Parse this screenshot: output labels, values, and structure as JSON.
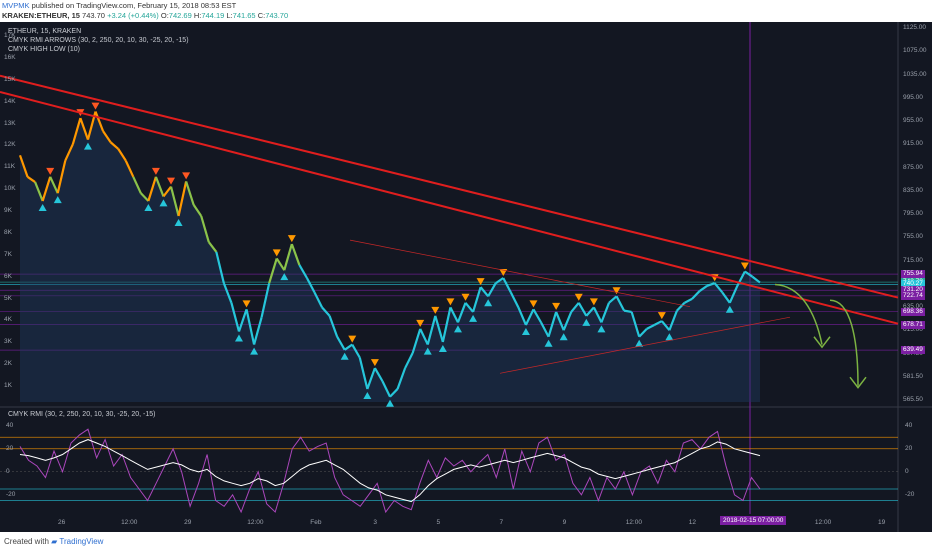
{
  "header": {
    "line1_user": "MVPMK",
    "line1_text": " published on TradingView.com, February 15, 2018 08:53 EST",
    "symbol": "KRAKEN:ETHEUR, 15",
    "last": "743.70",
    "change": "+3.24 (+0.44%)",
    "o_label": "O:",
    "o_value": "742.69",
    "h_label": "H:",
    "h_value": "744.19",
    "l_label": "L:",
    "l_value": "741.65",
    "c_label": "C:",
    "c_value": "743.70"
  },
  "overlay_legend": {
    "title": "ETHEUR, 15, KRAKEN",
    "ind1": "CMYK RMI ARROWS (30, 2, 250, 20, 10, 30, -25, 20, -15)",
    "ind2": "CMYK HIGH LOW (10)"
  },
  "rmi_legend": "CMYK RMI (30, 2, 250, 20, 10, 30, -25, 20, -15)",
  "footer": {
    "created": "Created with",
    "brand": "TradingView"
  },
  "colors": {
    "background": "#131722",
    "trendline": "#e01e1e",
    "price_low": "#26c6da",
    "price_high": "#ff9800",
    "rmi_line": "#ab47bc",
    "cursor": "#7b1fa2"
  },
  "chart_data": [
    {
      "type": "line",
      "title": "ETHEUR, 15, KRAKEN",
      "ylim": [
        560,
        1130
      ],
      "right_axis_ticks": [
        "1125.00",
        "1075.00",
        "1035.00",
        "995.00",
        "955.00",
        "915.00",
        "875.00",
        "835.00",
        "795.00",
        "755.00",
        "715.00",
        "675.00",
        "635.00",
        "615.00",
        "597.50",
        "581.50",
        "565.50"
      ],
      "left_axis_ticks": [
        "17K",
        "16K",
        "15K",
        "14K",
        "13K",
        "12K",
        "11K",
        "10K",
        "9K",
        "8K",
        "7K",
        "6K",
        "5K",
        "4K",
        "3K",
        "2K",
        "1K"
      ],
      "x_ticks": [
        "26",
        "12:00",
        "29",
        "12:00",
        "Feb",
        "3",
        "5",
        "7",
        "9",
        "12:00",
        "12",
        "14",
        "12:00",
        "19"
      ],
      "cursor_date": "2018-02-15 07:00:00",
      "price_labels": [
        {
          "text": "755.94",
          "color": "#7b1fa2"
        },
        {
          "text": "743.70",
          "color": "#26a69a"
        },
        {
          "text": "740.27",
          "color": "#26c6da"
        },
        {
          "text": "731.20",
          "color": "#7b1fa2"
        },
        {
          "text": "722.74",
          "color": "#7b1fa2"
        },
        {
          "text": "698.36",
          "color": "#7b1fa2"
        },
        {
          "text": "678.71",
          "color": "#7b1fa2"
        },
        {
          "text": "639.49",
          "color": "#7b1fa2"
        }
      ],
      "series": [
        {
          "values": [
            938,
            905,
            897,
            868,
            905,
            880,
            930,
            955,
            995,
            962,
            1005,
            975,
            958,
            948,
            930,
            905,
            880,
            868,
            905,
            875,
            890,
            845,
            898,
            862,
            845,
            805,
            790,
            742,
            712,
            668,
            702,
            648,
            690,
            742,
            780,
            762,
            802,
            770,
            750,
            728,
            705,
            692,
            660,
            640,
            648,
            628,
            580,
            612,
            592,
            568,
            580,
            612,
            635,
            672,
            648,
            692,
            652,
            705,
            682,
            712,
            698,
            736,
            722,
            742,
            750,
            728,
            705,
            678,
            702,
            682,
            660,
            698,
            670,
            698,
            712,
            692,
            705,
            682,
            712,
            722,
            700,
            698,
            660,
            672,
            678,
            684,
            670,
            700,
            712,
            718,
            730,
            738,
            742,
            728,
            712,
            738,
            760,
            752,
            743
          ]
        }
      ],
      "resistance_lines": 2
    },
    {
      "type": "line",
      "title": "CMYK RMI (30, 2, 250, 20, 10, 30, -25, 20, -15)",
      "ylim": [
        -35,
        45
      ],
      "y_ticks": [
        "40",
        "20",
        "0",
        "-20"
      ],
      "levels": [
        30,
        20,
        -15,
        -25
      ],
      "series": [
        {
          "values": [
            22,
            10,
            5,
            -5,
            18,
            0,
            25,
            32,
            37,
            12,
            28,
            5,
            15,
            -5,
            -15,
            -25,
            -10,
            5,
            20,
            0,
            -30,
            -10,
            15,
            -25,
            -30,
            -20,
            -35,
            -15,
            0,
            -28,
            -35,
            -10,
            20,
            30,
            18,
            22,
            25,
            -5,
            -20,
            -25,
            -30,
            -20,
            -10,
            -35,
            -25,
            -30,
            -33,
            -10,
            10,
            -5,
            12,
            5,
            10,
            0,
            8,
            15,
            -5,
            20,
            -15,
            18,
            0,
            25,
            30,
            10,
            15,
            -10,
            -20,
            -5,
            -25,
            -5,
            -15,
            0,
            -20,
            0,
            5,
            -10,
            10,
            0,
            25,
            28,
            20,
            30,
            35,
            5,
            -20,
            -25,
            -5,
            -15
          ]
        },
        {
          "values": [
            15,
            14,
            12,
            10,
            12,
            15,
            20,
            25,
            28,
            25,
            22,
            18,
            14,
            10,
            6,
            2,
            4,
            6,
            8,
            6,
            2,
            0,
            2,
            -4,
            -8,
            -10,
            -12,
            -10,
            -6,
            -8,
            -12,
            -10,
            -4,
            2,
            6,
            8,
            10,
            6,
            2,
            -4,
            -10,
            -14,
            -16,
            -20,
            -22,
            -24,
            -26,
            -20,
            -12,
            -6,
            -2,
            2,
            4,
            6,
            4,
            6,
            8,
            10,
            8,
            10,
            12,
            14,
            16,
            14,
            12,
            8,
            4,
            2,
            -2,
            -4,
            -6,
            -4,
            -2,
            0,
            2,
            4,
            6,
            8,
            12,
            16,
            20,
            22,
            26,
            24,
            20,
            18,
            16,
            14
          ]
        }
      ]
    }
  ]
}
